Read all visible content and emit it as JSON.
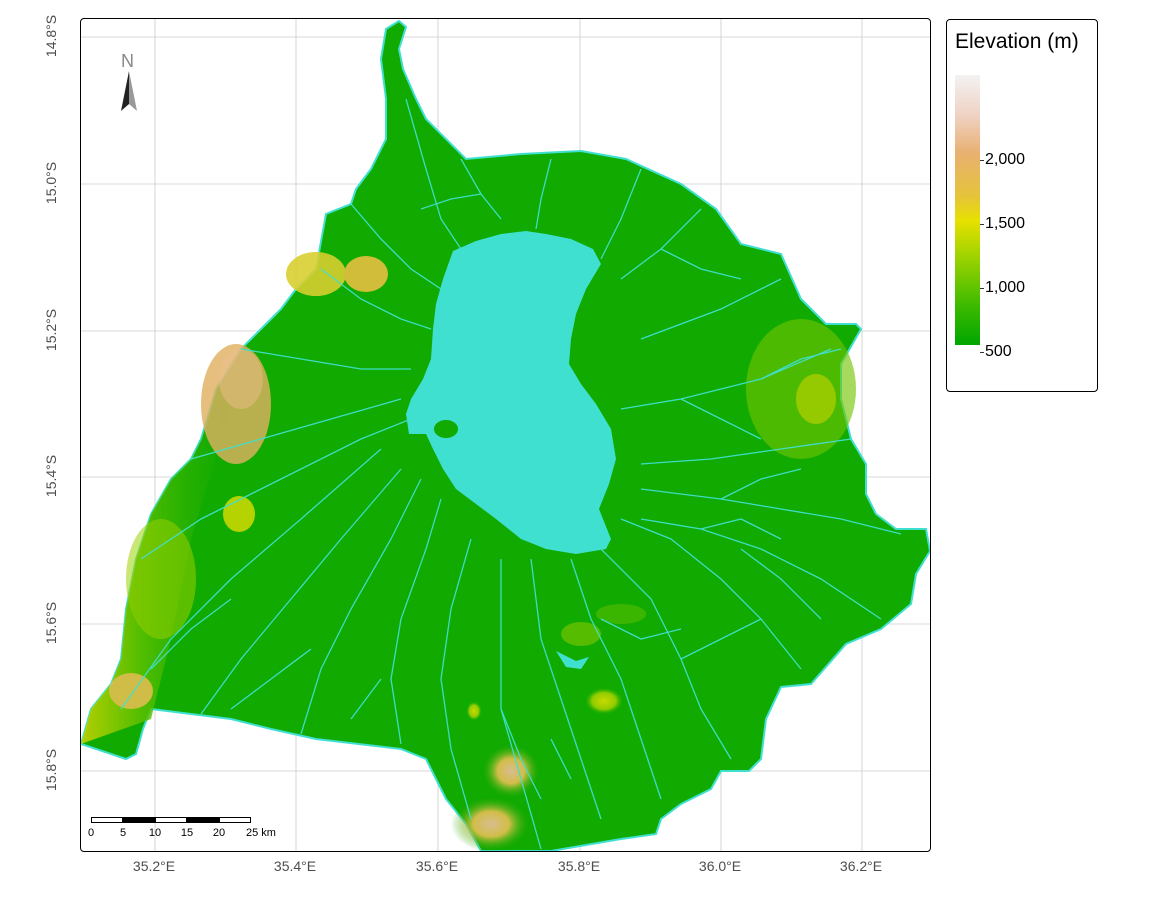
{
  "map": {
    "legend": {
      "title": "Elevation (m)",
      "ticks": [
        {
          "label": "2,000",
          "value": 2000
        },
        {
          "label": "1,500",
          "value": 1500
        },
        {
          "label": "1,000",
          "value": 1000
        },
        {
          "label": "500",
          "value": 500
        }
      ],
      "colors": {
        "high": "#f2f2f2",
        "upper": "#efd2c4",
        "mid_high": "#e8b070",
        "mid": "#e6e100",
        "low": "#00a600"
      }
    },
    "y_axis_labels": [
      "14.8°S",
      "15.0°S",
      "15.2°S",
      "15.4°S",
      "15.6°S",
      "15.8°S"
    ],
    "x_axis_labels": [
      "35.2°E",
      "35.4°E",
      "35.6°E",
      "35.8°E",
      "36.0°E",
      "36.2°E"
    ],
    "north_arrow": {
      "label": "N",
      "icon": "north-arrow-icon"
    },
    "scale_bar": {
      "labels": [
        "0",
        "5",
        "10",
        "15",
        "20",
        "25 km"
      ]
    },
    "colors": {
      "lake": "#40e0d0",
      "rivers": "#40e0d0",
      "boundary": "#40e0d0",
      "lowland": "#10aa00",
      "upland": "#7fcc00",
      "highland": "#e6c040"
    }
  }
}
